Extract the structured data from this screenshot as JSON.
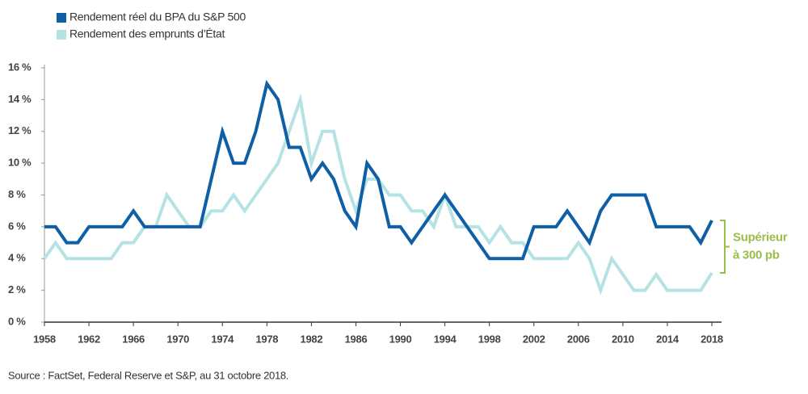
{
  "chart_data": {
    "type": "line",
    "legend_position": "top-left",
    "x": [
      1958,
      1959,
      1960,
      1961,
      1962,
      1963,
      1964,
      1965,
      1966,
      1967,
      1968,
      1969,
      1970,
      1971,
      1972,
      1973,
      1974,
      1975,
      1976,
      1977,
      1978,
      1979,
      1980,
      1981,
      1982,
      1983,
      1984,
      1985,
      1986,
      1987,
      1988,
      1989,
      1990,
      1991,
      1992,
      1993,
      1994,
      1995,
      1996,
      1997,
      1998,
      1999,
      2000,
      2001,
      2002,
      2003,
      2004,
      2005,
      2006,
      2007,
      2008,
      2009,
      2010,
      2011,
      2012,
      2013,
      2014,
      2015,
      2016,
      2017,
      2018
    ],
    "series": [
      {
        "name": "Rendement réel du BPA du S&P 500",
        "color": "#0f5fa6",
        "values": [
          6,
          6,
          5,
          5,
          6,
          6,
          6,
          6,
          7,
          6,
          6,
          6,
          6,
          6,
          6,
          9,
          12,
          10,
          10,
          12,
          15,
          14,
          11,
          11,
          9,
          10,
          9,
          7,
          6,
          10,
          9,
          6,
          6,
          5,
          6,
          7,
          8,
          7,
          6,
          5,
          4,
          4,
          4,
          4,
          6,
          6,
          6,
          7,
          6,
          5,
          7,
          8,
          8,
          8,
          8,
          6,
          6,
          6,
          6,
          5,
          6.4
        ]
      },
      {
        "name": "Rendement des emprunts d’État",
        "color": "#b5e3e3",
        "values": [
          4,
          5,
          4,
          4,
          4,
          4,
          4,
          5,
          5,
          6,
          6,
          8,
          7,
          6,
          6,
          7,
          7,
          8,
          7,
          8,
          9,
          10,
          12,
          14,
          10,
          12,
          12,
          9,
          7,
          9,
          9,
          8,
          8,
          7,
          7,
          6,
          8,
          6,
          6,
          6,
          5,
          6,
          5,
          5,
          4,
          4,
          4,
          4,
          5,
          4,
          2,
          4,
          3,
          2,
          2,
          3,
          2,
          2,
          2,
          2,
          3.1
        ]
      }
    ],
    "xlim": [
      1958,
      2018
    ],
    "xticks": [
      1958,
      1962,
      1966,
      1970,
      1974,
      1978,
      1982,
      1986,
      1990,
      1994,
      1998,
      2002,
      2006,
      2010,
      2014,
      2018
    ],
    "ylim": [
      0,
      16
    ],
    "yticks": [
      {
        "value": 0,
        "label": "0 %"
      },
      {
        "value": 2,
        "label": "2 %"
      },
      {
        "value": 4,
        "label": "4 %"
      },
      {
        "value": 6,
        "label": "6 %"
      },
      {
        "value": 8,
        "label": "8 %"
      },
      {
        "value": 10,
        "label": "10 %"
      },
      {
        "value": 12,
        "label": "12 %"
      },
      {
        "value": 14,
        "label": "14 %"
      },
      {
        "value": 16,
        "label": "16 %"
      }
    ],
    "grid": false,
    "annotation": [
      "Supérieur",
      "à 300 pb"
    ],
    "annotation_color": "#9bbd4a",
    "source": "Source : FactSet, Federal Reserve et S&P, au 31 octobre 2018."
  }
}
